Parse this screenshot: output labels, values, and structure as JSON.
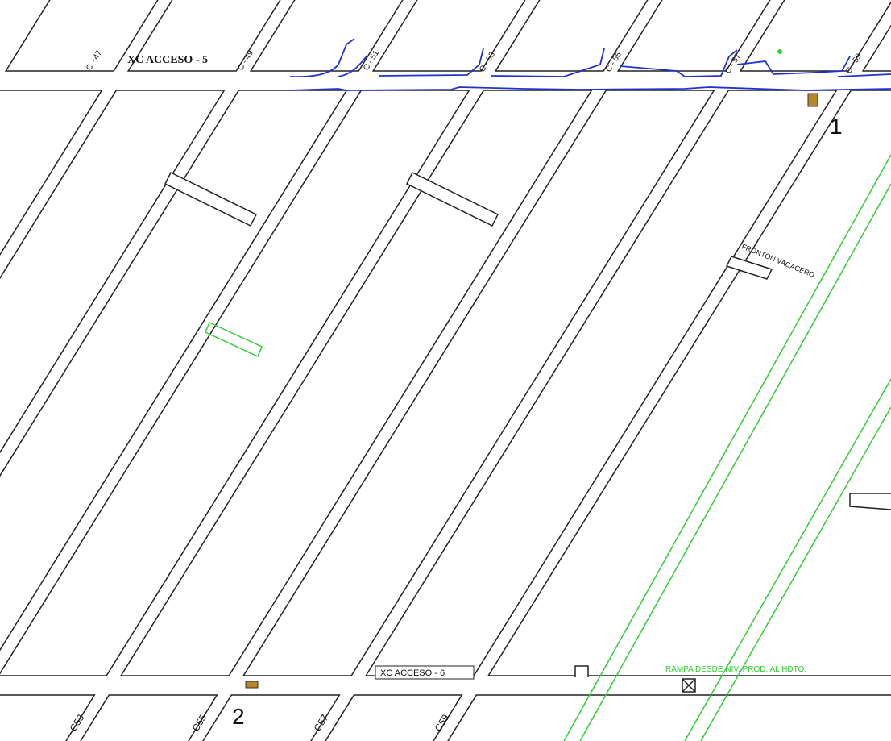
{
  "top_road": {
    "label": "XC ACCESO - 5"
  },
  "top_drifts": [
    "C - 47",
    "C - 49",
    "C - 51",
    "C - 53",
    "C - 55",
    "C - 57",
    "C - 59"
  ],
  "bottom_road": {
    "label": "XC ACCESO - 6"
  },
  "bottom_drifts": [
    "C53",
    "C55",
    "C57",
    "C59"
  ],
  "points": [
    "1",
    "2"
  ],
  "annotations": {
    "fronton": "FRONTON VACACERO",
    "ramp": "RAMPA DESDE NIV. PROD. AL HDTO."
  }
}
